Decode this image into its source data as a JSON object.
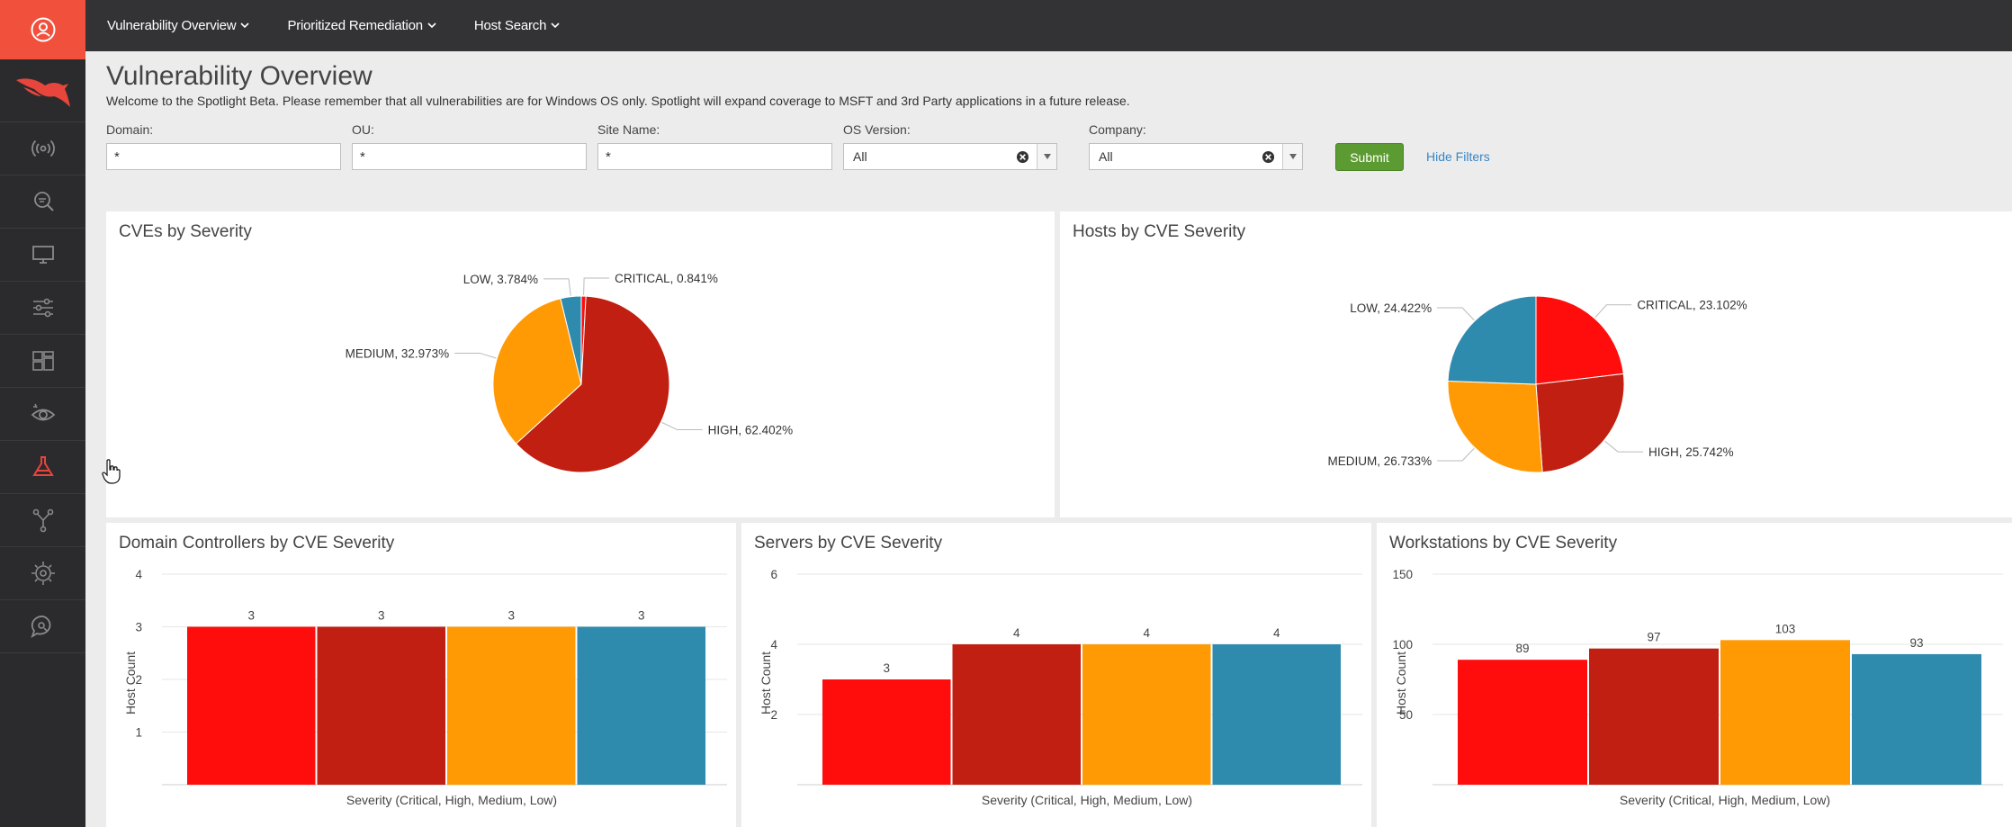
{
  "nav": {
    "items": [
      {
        "label": "Vulnerability Overview"
      },
      {
        "label": "Prioritized Remediation"
      },
      {
        "label": "Host Search"
      }
    ]
  },
  "sidebar": {
    "items": [
      {
        "icon": "broadcast-icon"
      },
      {
        "icon": "search-icon"
      },
      {
        "icon": "monitor-icon"
      },
      {
        "icon": "sliders-icon"
      },
      {
        "icon": "dashboard-icon"
      },
      {
        "icon": "eye-icon"
      },
      {
        "icon": "flask-icon",
        "active": true
      },
      {
        "icon": "network-icon"
      },
      {
        "icon": "radar-icon"
      },
      {
        "icon": "chat-icon"
      }
    ]
  },
  "page": {
    "title": "Vulnerability Overview",
    "welcome": "Welcome to the Spotlight Beta. Please remember that all vulnerabilities are for Windows OS only. Spotlight will expand coverage to MSFT and 3rd Party applications in a future release."
  },
  "filters": {
    "domain": {
      "label": "Domain:",
      "value": "*"
    },
    "ou": {
      "label": "OU:",
      "value": "*"
    },
    "site": {
      "label": "Site Name:",
      "value": "*"
    },
    "os": {
      "label": "OS Version:",
      "value": "All"
    },
    "company": {
      "label": "Company:",
      "value": "All"
    },
    "submit_label": "Submit",
    "hide_label": "Hide Filters"
  },
  "colors": {
    "critical": "#ff0d0d",
    "high": "#c01f11",
    "medium": "#ff9a05",
    "low": "#2e8bae"
  },
  "panels": {
    "cves": {
      "title": "CVEs by Severity"
    },
    "hosts": {
      "title": "Hosts by CVE Severity"
    },
    "dc": {
      "title": "Domain Controllers by CVE Severity"
    },
    "servers": {
      "title": "Servers by CVE Severity"
    },
    "workstations": {
      "title": "Workstations by CVE Severity"
    }
  },
  "chart_data": [
    {
      "type": "pie",
      "title": "CVEs by Severity",
      "slices": [
        {
          "name": "CRITICAL",
          "value": 0.841,
          "label": "CRITICAL, 0.841%"
        },
        {
          "name": "HIGH",
          "value": 62.402,
          "label": "HIGH, 62.402%"
        },
        {
          "name": "MEDIUM",
          "value": 32.973,
          "label": "MEDIUM, 32.973%"
        },
        {
          "name": "LOW",
          "value": 3.784,
          "label": "LOW, 3.784%"
        }
      ]
    },
    {
      "type": "pie",
      "title": "Hosts by CVE Severity",
      "slices": [
        {
          "name": "CRITICAL",
          "value": 23.102,
          "label": "CRITICAL, 23.102%"
        },
        {
          "name": "HIGH",
          "value": 25.742,
          "label": "HIGH, 25.742%"
        },
        {
          "name": "MEDIUM",
          "value": 26.733,
          "label": "MEDIUM, 26.733%"
        },
        {
          "name": "LOW",
          "value": 24.422,
          "label": "LOW, 24.422%"
        }
      ]
    },
    {
      "type": "bar",
      "title": "Domain Controllers by CVE Severity",
      "categories": [
        "Critical",
        "High",
        "Medium",
        "Low"
      ],
      "values": [
        3,
        3,
        3,
        3
      ],
      "xlabel": "Severity (Critical, High, Medium, Low)",
      "ylabel": "Host Count",
      "ylim": [
        0,
        4
      ],
      "yticks": [
        1,
        2,
        3,
        4
      ],
      "grid": true
    },
    {
      "type": "bar",
      "title": "Servers by CVE Severity",
      "categories": [
        "Critical",
        "High",
        "Medium",
        "Low"
      ],
      "values": [
        3,
        4,
        4,
        4
      ],
      "xlabel": "Severity (Critical, High, Medium, Low)",
      "ylabel": "Host Count",
      "ylim": [
        0,
        6
      ],
      "yticks": [
        2,
        4,
        6
      ],
      "grid": true
    },
    {
      "type": "bar",
      "title": "Workstations by CVE Severity",
      "categories": [
        "Critical",
        "High",
        "Medium",
        "Low"
      ],
      "values": [
        89,
        97,
        103,
        93
      ],
      "xlabel": "Severity (Critical, High, Medium, Low)",
      "ylabel": "Host Count",
      "ylim": [
        0,
        150
      ],
      "yticks": [
        50,
        100,
        150
      ],
      "grid": true
    }
  ]
}
